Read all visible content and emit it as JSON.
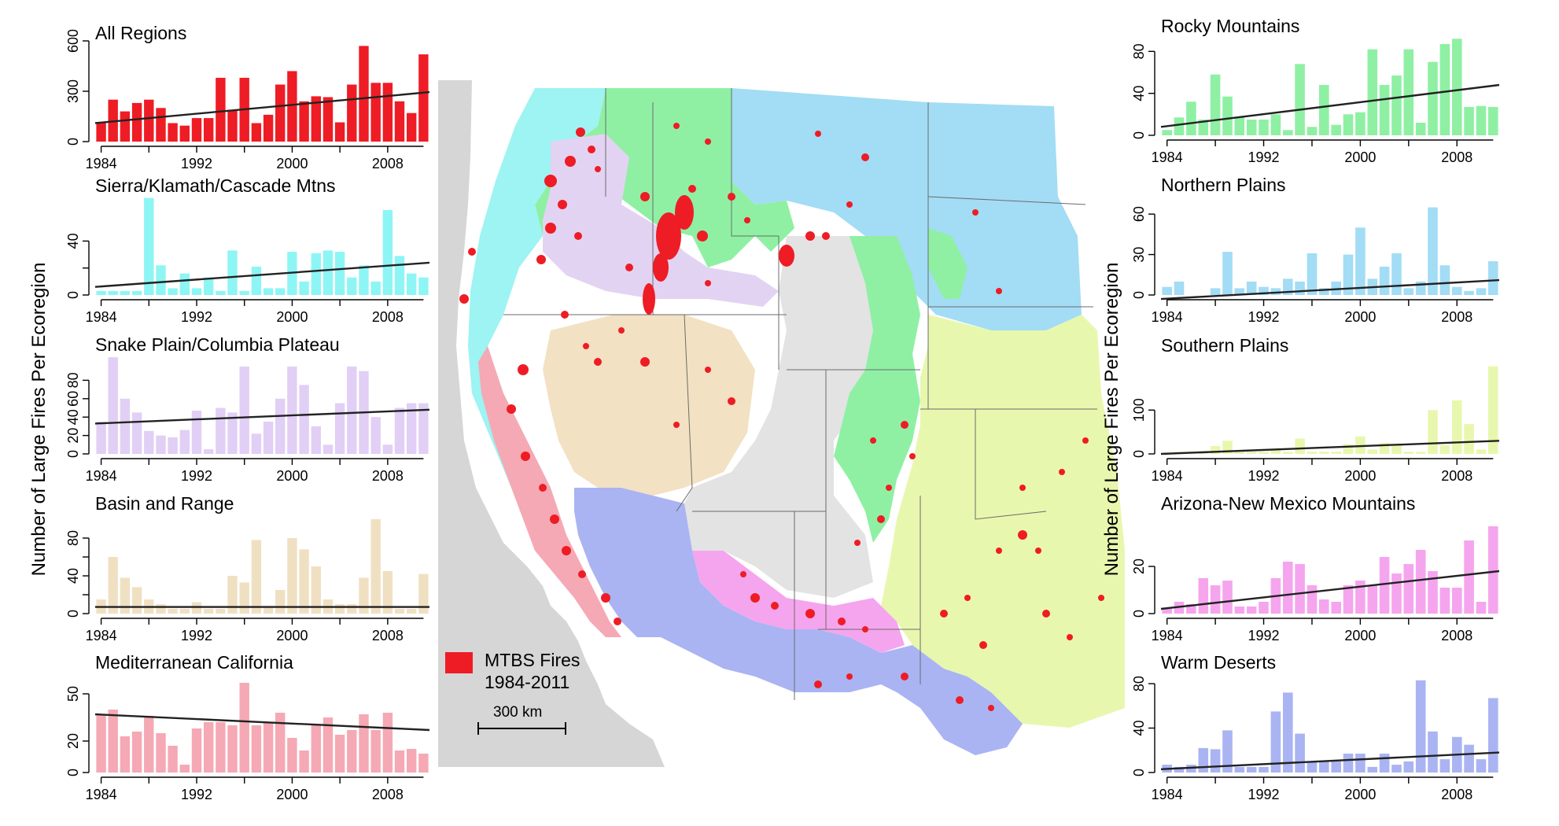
{
  "figure": {
    "ylabel": "Number of Large Fires Per Ecoregion",
    "map": {
      "legend_label_line1": "MTBS Fires",
      "legend_label_line2": "1984-2011",
      "fire_color": "#ee1c25",
      "scale_label": "300 km",
      "ecoregion_colors": {
        "Rocky Mountains": "#8ff0a4",
        "Northern Plains": "#a3dcf5",
        "Southern Plains": "#e8f7ae",
        "Sierra/Klamath/Cascade Mtns": "#9ef3f3",
        "Snake Plain/Columbia Plateau": "#e3d3f3",
        "Basin and Range": "#f2e1c3",
        "Mediterranean California": "#f5a9b3",
        "Arizona-New Mexico Mountains": "#f5a5ee",
        "Warm Deserts": "#aab4f2",
        "Other": "#e3e3e3",
        "Ocean": "#d3d3d3"
      }
    }
  },
  "chart_data": [
    {
      "type": "bar",
      "title": "All Regions",
      "color": "#ee1c25",
      "x": [
        1984,
        1985,
        1986,
        1987,
        1988,
        1989,
        1990,
        1991,
        1992,
        1993,
        1994,
        1995,
        1996,
        1997,
        1998,
        1999,
        2000,
        2001,
        2002,
        2003,
        2004,
        2005,
        2006,
        2007,
        2008,
        2009,
        2010,
        2011
      ],
      "values": [
        110,
        250,
        180,
        230,
        250,
        200,
        110,
        95,
        140,
        140,
        380,
        190,
        380,
        110,
        160,
        340,
        420,
        240,
        270,
        265,
        115,
        340,
        570,
        350,
        350,
        240,
        170,
        520
      ],
      "ylim": [
        0,
        600
      ],
      "yticks": [
        0,
        300,
        600
      ],
      "xticks": [
        1984,
        1992,
        2000,
        2008
      ],
      "trend": [
        110,
        295
      ]
    },
    {
      "type": "bar",
      "title": "Sierra/Klamath/Cascade Mtns",
      "color": "#8ef5f5",
      "x": [
        1984,
        1985,
        1986,
        1987,
        1988,
        1989,
        1990,
        1991,
        1992,
        1993,
        1994,
        1995,
        1996,
        1997,
        1998,
        1999,
        2000,
        2001,
        2002,
        2003,
        2004,
        2005,
        2006,
        2007,
        2008,
        2009,
        2010,
        2011
      ],
      "values": [
        3,
        3,
        3,
        3,
        72,
        22,
        5,
        16,
        5,
        13,
        3,
        33,
        3,
        21,
        5,
        5,
        32,
        10,
        31,
        33,
        32,
        13,
        22,
        10,
        63,
        29,
        16,
        13
      ],
      "ylim": [
        0,
        70
      ],
      "yticks": [
        0,
        20,
        40
      ],
      "ytick_labels": [
        "0",
        "",
        "40"
      ],
      "xticks": [
        1984,
        1992,
        2000,
        2008
      ],
      "trend": [
        6,
        24
      ]
    },
    {
      "type": "bar",
      "title": "Snake Plain/Columbia Plateau",
      "color": "#e1cff5",
      "x": [
        1984,
        1985,
        1986,
        1987,
        1988,
        1989,
        1990,
        1991,
        1992,
        1993,
        1994,
        1995,
        1996,
        1997,
        1998,
        1999,
        2000,
        2001,
        2002,
        2003,
        2004,
        2005,
        2006,
        2007,
        2008,
        2009,
        2010,
        2011
      ],
      "values": [
        35,
        105,
        60,
        45,
        25,
        20,
        18,
        26,
        47,
        5,
        50,
        45,
        95,
        22,
        35,
        60,
        95,
        75,
        30,
        10,
        55,
        95,
        90,
        40,
        10,
        50,
        55,
        55
      ],
      "ylim": [
        0,
        100
      ],
      "yticks": [
        0,
        20,
        40,
        60,
        80
      ],
      "ytick_labels": [
        "0",
        "20",
        "40",
        "60",
        "80"
      ],
      "xticks": [
        1984,
        1992,
        2000,
        2008
      ],
      "trend": [
        33,
        48
      ]
    },
    {
      "type": "bar",
      "title": "Basin and Range",
      "color": "#f0e0c2",
      "x": [
        1984,
        1985,
        1986,
        1987,
        1988,
        1989,
        1990,
        1991,
        1992,
        1993,
        1994,
        1995,
        1996,
        1997,
        1998,
        1999,
        2000,
        2001,
        2002,
        2003,
        2004,
        2005,
        2006,
        2007,
        2008,
        2009,
        2010,
        2011
      ],
      "values": [
        15,
        60,
        38,
        28,
        15,
        10,
        5,
        5,
        12,
        5,
        5,
        40,
        33,
        78,
        8,
        25,
        80,
        68,
        50,
        15,
        10,
        10,
        38,
        100,
        45,
        5,
        5,
        42
      ],
      "ylim": [
        0,
        100
      ],
      "yticks": [
        0,
        20,
        40,
        60,
        80
      ],
      "ytick_labels": [
        "0",
        "",
        "40",
        "",
        "80"
      ],
      "xticks": [
        1984,
        1992,
        2000,
        2008
      ],
      "trend": [
        7,
        7
      ]
    },
    {
      "type": "bar",
      "title": "Mediterranean California",
      "color": "#f5a9b4",
      "x": [
        1984,
        1985,
        1986,
        1987,
        1988,
        1989,
        1990,
        1991,
        1992,
        1993,
        1994,
        1995,
        1996,
        1997,
        1998,
        1999,
        2000,
        2001,
        2002,
        2003,
        2004,
        2005,
        2006,
        2007,
        2008,
        2009,
        2010,
        2011
      ],
      "values": [
        37,
        40,
        23,
        26,
        36,
        25,
        17,
        5,
        28,
        32,
        32,
        30,
        57,
        30,
        32,
        38,
        22,
        14,
        30,
        35,
        24,
        27,
        37,
        27,
        38,
        14,
        15,
        12
      ],
      "ylim": [
        0,
        60
      ],
      "yticks": [
        0,
        20,
        50
      ],
      "ytick_labels": [
        "0",
        "20",
        "50"
      ],
      "xticks": [
        1984,
        1992,
        2000,
        2008
      ],
      "trend": [
        37,
        27
      ]
    },
    {
      "type": "bar",
      "title": "Rocky Mountains",
      "color": "#8ff0a4",
      "x": [
        1984,
        1985,
        1986,
        1987,
        1988,
        1989,
        1990,
        1991,
        1992,
        1993,
        1994,
        1995,
        1996,
        1997,
        1998,
        1999,
        2000,
        2001,
        2002,
        2003,
        2004,
        2005,
        2006,
        2007,
        2008,
        2009,
        2010,
        2011
      ],
      "values": [
        5,
        17,
        32,
        15,
        58,
        37,
        17,
        15,
        15,
        20,
        5,
        68,
        8,
        48,
        10,
        20,
        22,
        82,
        48,
        57,
        82,
        12,
        70,
        87,
        92,
        27,
        28,
        27
      ],
      "ylim": [
        0,
        90
      ],
      "yticks": [
        0,
        40,
        80
      ],
      "xticks": [
        1984,
        1992,
        2000,
        2008
      ],
      "trend": [
        8,
        48
      ]
    },
    {
      "type": "bar",
      "title": "Northern Plains",
      "color": "#a3dcf5",
      "x": [
        1984,
        1985,
        1986,
        1987,
        1988,
        1989,
        1990,
        1991,
        1992,
        1993,
        1994,
        1995,
        1996,
        1997,
        1998,
        1999,
        2000,
        2001,
        2002,
        2003,
        2004,
        2005,
        2006,
        2007,
        2008,
        2009,
        2010,
        2011
      ],
      "values": [
        6,
        10,
        0,
        0,
        5,
        32,
        5,
        10,
        6,
        5,
        12,
        10,
        31,
        5,
        10,
        30,
        50,
        12,
        21,
        31,
        5,
        10,
        65,
        22,
        6,
        3,
        5,
        25
      ],
      "ylim": [
        0,
        70
      ],
      "yticks": [
        0,
        30,
        60
      ],
      "yticks_extra": [
        15
      ],
      "ytick_labels": [
        "0",
        "30",
        "60"
      ],
      "xticks": [
        1984,
        1992,
        2000,
        2008
      ],
      "trend": [
        -3,
        11
      ]
    },
    {
      "type": "bar",
      "title": "Southern Plains",
      "color": "#e8f7ae",
      "x": [
        1984,
        1985,
        1986,
        1987,
        1988,
        1989,
        1990,
        1991,
        1992,
        1993,
        1994,
        1995,
        1996,
        1997,
        1998,
        1999,
        2000,
        2001,
        2002,
        2003,
        2004,
        2005,
        2006,
        2007,
        2008,
        2009,
        2010,
        2011
      ],
      "values": [
        0,
        5,
        5,
        5,
        18,
        30,
        5,
        5,
        5,
        10,
        5,
        35,
        5,
        5,
        5,
        22,
        40,
        10,
        25,
        20,
        5,
        5,
        100,
        20,
        122,
        68,
        10,
        200
      ],
      "ylim": [
        0,
        210
      ],
      "yticks": [
        0,
        100
      ],
      "xticks": [
        1984,
        1992,
        2000,
        2008
      ],
      "trend": [
        0,
        30
      ]
    },
    {
      "type": "bar",
      "title": "Arizona-New Mexico Mountains",
      "color": "#f5a5ee",
      "x": [
        1984,
        1985,
        1986,
        1987,
        1988,
        1989,
        1990,
        1991,
        1992,
        1993,
        1994,
        1995,
        1996,
        1997,
        1998,
        1999,
        2000,
        2001,
        2002,
        2003,
        2004,
        2005,
        2006,
        2007,
        2008,
        2009,
        2010,
        2011
      ],
      "values": [
        2,
        5,
        4,
        15,
        12,
        14,
        3,
        3,
        5,
        15,
        22,
        21,
        12,
        6,
        5,
        12,
        14,
        12,
        24,
        17,
        21,
        27,
        18,
        11,
        11,
        31,
        5,
        37
      ],
      "ylim": [
        0,
        40
      ],
      "yticks": [
        0,
        20
      ],
      "ytick_labels": [
        "0",
        "20"
      ],
      "xticks": [
        1984,
        1992,
        2000,
        2008
      ],
      "trend": [
        2,
        18
      ]
    },
    {
      "type": "bar",
      "title": "Warm Deserts",
      "color": "#aab4f2",
      "x": [
        1984,
        1985,
        1986,
        1987,
        1988,
        1989,
        1990,
        1991,
        1992,
        1993,
        1994,
        1995,
        1996,
        1997,
        1998,
        1999,
        2000,
        2001,
        2002,
        2003,
        2004,
        2005,
        2006,
        2007,
        2008,
        2009,
        2010,
        2011
      ],
      "values": [
        7,
        5,
        7,
        22,
        21,
        38,
        5,
        5,
        5,
        55,
        72,
        35,
        10,
        10,
        10,
        17,
        17,
        5,
        17,
        7,
        10,
        83,
        37,
        12,
        32,
        25,
        12,
        67
      ],
      "ylim": [
        0,
        85
      ],
      "yticks": [
        0,
        40,
        80
      ],
      "ytick_labels": [
        "0",
        "40",
        "80"
      ],
      "xticks": [
        1984,
        1992,
        2000,
        2008
      ],
      "trend": [
        3,
        18
      ]
    }
  ]
}
